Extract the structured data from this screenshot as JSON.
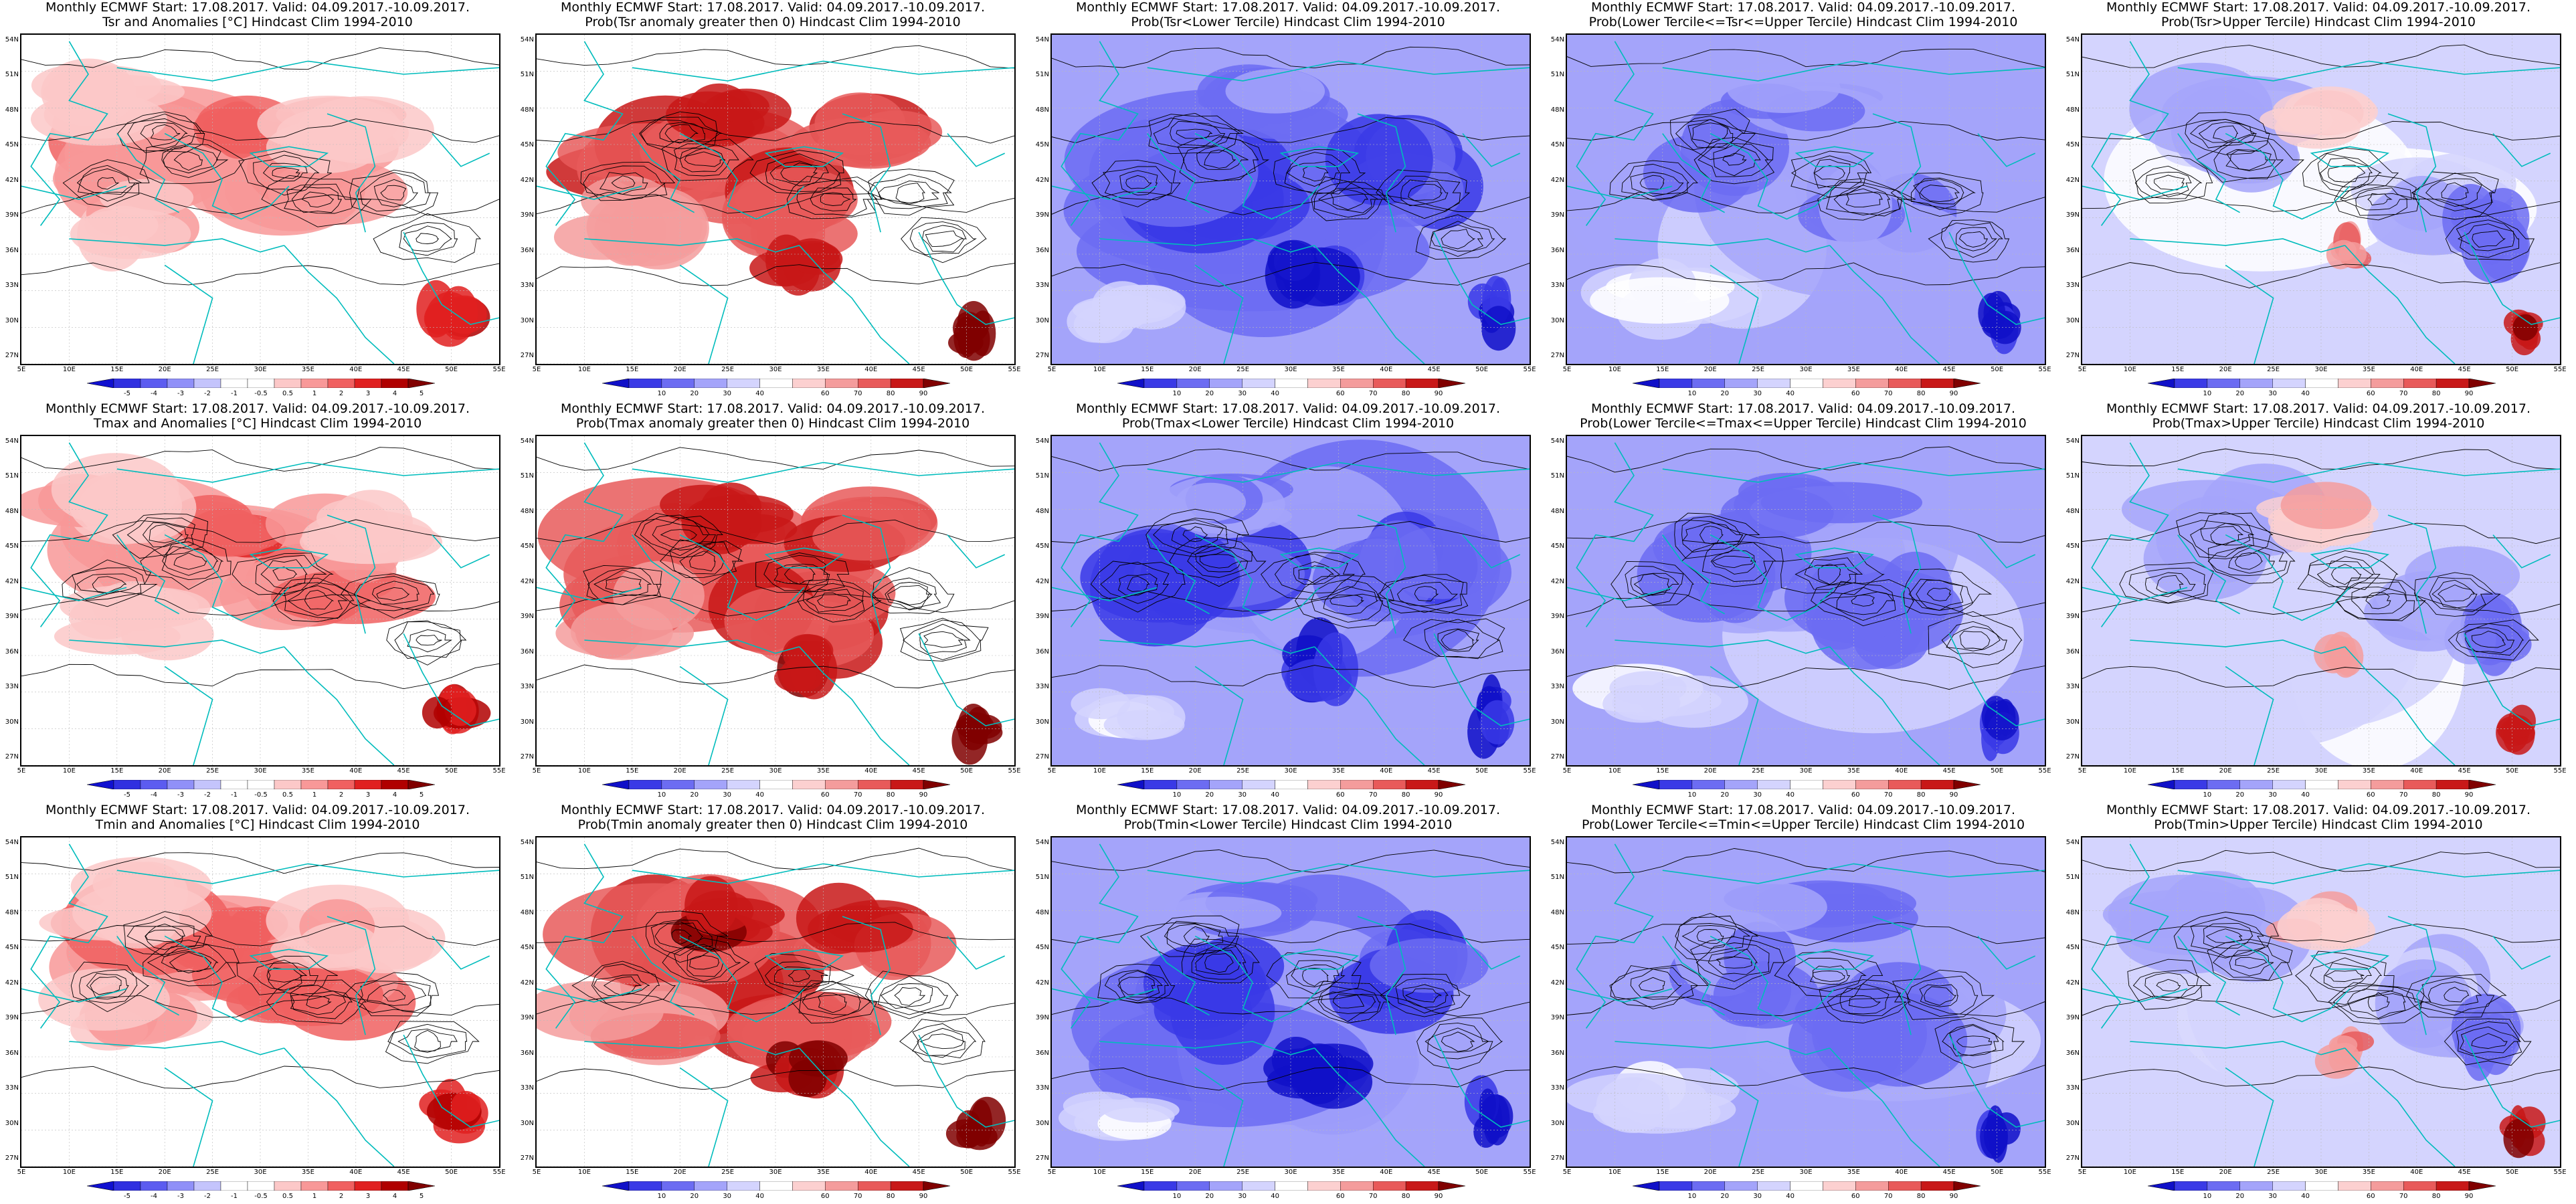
{
  "panels": [
    {
      "title1": "Monthly ECMWF Start: 17.08.2017. Valid: 04.09.2017.-10.09.2017.",
      "title2": "Tsr and Anomalies [°C] Hindcast Clim 1994-2010",
      "kind": "anom",
      "colorbar": [
        "-5",
        "-4",
        "-3",
        "-2",
        "-1",
        "-0.5",
        "0.5",
        "1",
        "2",
        "3",
        "4",
        "5"
      ]
    },
    {
      "title1": "Monthly ECMWF Start: 17.08.2017. Valid: 04.09.2017.-10.09.2017.",
      "title2": "Prob(Tsr anomaly greater then 0) Hindcast Clim 1994-2010",
      "kind": "probpos",
      "colorbar": [
        "10",
        "20",
        "30",
        "40",
        "60",
        "70",
        "80",
        "90"
      ]
    },
    {
      "title1": "Monthly ECMWF Start: 17.08.2017. Valid: 04.09.2017.-10.09.2017.",
      "title2": "Prob(Tsr<Lower Tercile) Hindcast Clim 1994-2010",
      "kind": "lower",
      "colorbar": [
        "10",
        "20",
        "30",
        "40",
        "60",
        "70",
        "80",
        "90"
      ]
    },
    {
      "title1": "Monthly ECMWF Start: 17.08.2017. Valid: 04.09.2017.-10.09.2017.",
      "title2": "Prob(Lower Tercile<=Tsr<=Upper Tercile) Hindcast Clim 1994-2010",
      "kind": "middle",
      "colorbar": [
        "10",
        "20",
        "30",
        "40",
        "60",
        "70",
        "80",
        "90"
      ]
    },
    {
      "title1": "Monthly ECMWF Start: 17.08.2017. Valid: 04.09.2017.-10.09.2017.",
      "title2": "Prob(Tsr>Upper Tercile) Hindcast Clim 1994-2010",
      "kind": "upper",
      "colorbar": [
        "10",
        "20",
        "30",
        "40",
        "60",
        "70",
        "80",
        "90"
      ]
    },
    {
      "title1": "Monthly ECMWF Start: 17.08.2017. Valid: 04.09.2017.-10.09.2017.",
      "title2": "Tmax and Anomalies [°C] Hindcast Clim 1994-2010",
      "kind": "anom",
      "colorbar": [
        "-5",
        "-4",
        "-3",
        "-2",
        "-1",
        "-0.5",
        "0.5",
        "1",
        "2",
        "3",
        "4",
        "5"
      ]
    },
    {
      "title1": "Monthly ECMWF Start: 17.08.2017. Valid: 04.09.2017.-10.09.2017.",
      "title2": "Prob(Tmax anomaly greater then 0) Hindcast Clim 1994-2010",
      "kind": "probpos",
      "colorbar": [
        "10",
        "20",
        "30",
        "40",
        "60",
        "70",
        "80",
        "90"
      ]
    },
    {
      "title1": "Monthly ECMWF Start: 17.08.2017. Valid: 04.09.2017.-10.09.2017.",
      "title2": "Prob(Tmax<Lower Tercile) Hindcast Clim 1994-2010",
      "kind": "lower",
      "colorbar": [
        "10",
        "20",
        "30",
        "40",
        "60",
        "70",
        "80",
        "90"
      ]
    },
    {
      "title1": "Monthly ECMWF Start: 17.08.2017. Valid: 04.09.2017.-10.09.2017.",
      "title2": "Prob(Lower Tercile<=Tmax<=Upper Tercile) Hindcast Clim 1994-2010",
      "kind": "middle",
      "colorbar": [
        "10",
        "20",
        "30",
        "40",
        "60",
        "70",
        "80",
        "90"
      ]
    },
    {
      "title1": "Monthly ECMWF Start: 17.08.2017. Valid: 04.09.2017.-10.09.2017.",
      "title2": "Prob(Tmax>Upper Tercile) Hindcast Clim 1994-2010",
      "kind": "upper",
      "colorbar": [
        "10",
        "20",
        "30",
        "40",
        "60",
        "70",
        "80",
        "90"
      ]
    },
    {
      "title1": "Monthly ECMWF Start: 17.08.2017. Valid: 04.09.2017.-10.09.2017.",
      "title2": "Tmin and Anomalies [°C] Hindcast Clim 1994-2010",
      "kind": "anom",
      "colorbar": [
        "-5",
        "-4",
        "-3",
        "-2",
        "-1",
        "-0.5",
        "0.5",
        "1",
        "2",
        "3",
        "4",
        "5"
      ]
    },
    {
      "title1": "Monthly ECMWF Start: 17.08.2017. Valid: 04.09.2017.-10.09.2017.",
      "title2": "Prob(Tmin anomaly greater then 0) Hindcast Clim 1994-2010",
      "kind": "probpos",
      "colorbar": [
        "10",
        "20",
        "30",
        "40",
        "60",
        "70",
        "80",
        "90"
      ]
    },
    {
      "title1": "Monthly ECMWF Start: 17.08.2017. Valid: 04.09.2017.-10.09.2017.",
      "title2": "Prob(Tmin<Lower Tercile) Hindcast Clim 1994-2010",
      "kind": "lower",
      "colorbar": [
        "10",
        "20",
        "30",
        "40",
        "60",
        "70",
        "80",
        "90"
      ]
    },
    {
      "title1": "Monthly ECMWF Start: 17.08.2017. Valid: 04.09.2017.-10.09.2017.",
      "title2": "Prob(Lower Tercile<=Tmin<=Upper Tercile) Hindcast Clim 1994-2010",
      "kind": "middle",
      "colorbar": [
        "10",
        "20",
        "30",
        "40",
        "60",
        "70",
        "80",
        "90"
      ]
    },
    {
      "title1": "Monthly ECMWF Start: 17.08.2017. Valid: 04.09.2017.-10.09.2017.",
      "title2": "Prob(Tmin>Upper Tercile) Hindcast Clim 1994-2010",
      "kind": "upper",
      "colorbar": [
        "10",
        "20",
        "30",
        "40",
        "60",
        "70",
        "80",
        "90"
      ]
    }
  ],
  "lat_labels": [
    "54N",
    "51N",
    "48N",
    "45N",
    "42N",
    "39N",
    "36N",
    "33N",
    "30N",
    "27N"
  ],
  "lon_labels": [
    "5E",
    "10E",
    "15E",
    "20E",
    "25E",
    "30E",
    "35E",
    "40E",
    "45E",
    "50E",
    "55E"
  ],
  "palettes": {
    "anom": [
      "#1010d0",
      "#3030e0",
      "#5c5cf0",
      "#9090f8",
      "#c4c4fc",
      "#ffffff",
      "#ffffff",
      "#fcc8c8",
      "#f89898",
      "#f06060",
      "#e02020",
      "#b00000",
      "#800000"
    ],
    "prob": [
      "#1010c8",
      "#3a3ae6",
      "#6c6cf2",
      "#a4a4fa",
      "#d4d4fe",
      "#ffffff",
      "#fcd0d0",
      "#f49c9c",
      "#e85a5a",
      "#c81818",
      "#800000"
    ]
  },
  "colors": {
    "coast": "#00bcbc",
    "contour": "#000000",
    "grid": "#bbbbbb"
  }
}
